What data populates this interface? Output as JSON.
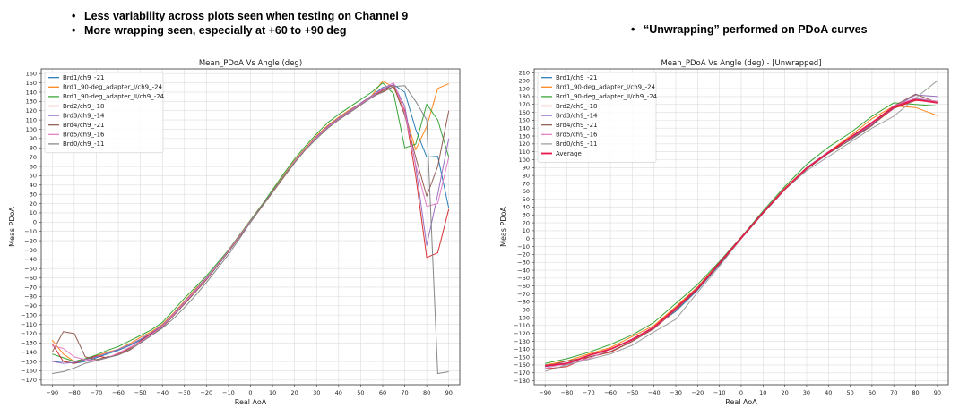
{
  "bullets_left": [
    "Less variability across plots seen when testing on Channel 9",
    "More wrapping seen, especially at +60 to +90 deg"
  ],
  "bullet_right": "“Unwrapping” performed on PDoA curves",
  "bullet_symbol": "•",
  "chart_data": [
    {
      "type": "line",
      "title": "Mean_PDoA Vs Angle (deg)",
      "xlabel": "Real AoA",
      "ylabel": "Meas PDoA",
      "xlim": [
        -95,
        95
      ],
      "ylim": [
        -175,
        165
      ],
      "xticks": [
        -90,
        -80,
        -70,
        -60,
        -50,
        -40,
        -30,
        -20,
        -10,
        0,
        10,
        20,
        30,
        40,
        50,
        60,
        70,
        80,
        90
      ],
      "yticks": [
        -170,
        -160,
        -150,
        -140,
        -130,
        -120,
        -110,
        -100,
        -90,
        -80,
        -70,
        -60,
        -50,
        -40,
        -30,
        -20,
        -10,
        0,
        10,
        20,
        30,
        40,
        50,
        60,
        70,
        80,
        90,
        100,
        110,
        120,
        130,
        140,
        150,
        160
      ],
      "grid": true,
      "legend": "top-left",
      "x": [
        -90,
        -85,
        -80,
        -75,
        -70,
        -65,
        -60,
        -55,
        -50,
        -45,
        -40,
        -35,
        -30,
        -25,
        -20,
        -15,
        -10,
        -5,
        0,
        5,
        10,
        15,
        20,
        25,
        30,
        35,
        40,
        45,
        50,
        55,
        60,
        65,
        70,
        75,
        80,
        85,
        90
      ],
      "series": [
        {
          "name": "Brd1/ch9_-21",
          "color": "#1f77b4",
          "values": [
            -150,
            -150,
            -152,
            -150,
            -146,
            -142,
            -138,
            -133,
            -127,
            -120,
            -112,
            -100,
            -88,
            -75,
            -62,
            -47,
            -32,
            -16,
            0,
            17,
            33,
            50,
            66,
            80,
            92,
            103,
            112,
            120,
            128,
            136,
            145,
            148,
            140,
            100,
            70,
            71,
            15
          ]
        },
        {
          "name": "Brd1_90-deg_adapter_I/ch9_-24",
          "color": "#ff7f0e",
          "values": [
            -127,
            -142,
            -150,
            -148,
            -144,
            -140,
            -137,
            -131,
            -124,
            -118,
            -110,
            -98,
            -85,
            -72,
            -60,
            -46,
            -30,
            -14,
            2,
            18,
            34,
            50,
            66,
            80,
            93,
            104,
            113,
            121,
            128,
            136,
            152,
            145,
            118,
            78,
            103,
            144,
            149
          ]
        },
        {
          "name": "Brd1_90-deg_adapter_II/ch9_-24",
          "color": "#2ca02c",
          "values": [
            -142,
            -146,
            -150,
            -147,
            -143,
            -138,
            -134,
            -128,
            -122,
            -116,
            -108,
            -95,
            -82,
            -70,
            -58,
            -44,
            -30,
            -14,
            2,
            18,
            35,
            52,
            68,
            82,
            95,
            107,
            116,
            124,
            132,
            140,
            150,
            138,
            80,
            84,
            127,
            110,
            70
          ]
        },
        {
          "name": "Brd2/ch9_-18",
          "color": "#d62728",
          "values": [
            -131,
            -150,
            -152,
            -148,
            -144,
            -146,
            -142,
            -136,
            -128,
            -120,
            -112,
            -100,
            -88,
            -75,
            -62,
            -46,
            -31,
            -15,
            1,
            17,
            33,
            49,
            65,
            79,
            91,
            102,
            111,
            119,
            127,
            135,
            142,
            148,
            120,
            50,
            -38,
            -33,
            14
          ]
        },
        {
          "name": "Brd3/ch9_-14",
          "color": "#9467bd",
          "values": [
            -150,
            -152,
            -151,
            -148,
            -145,
            -141,
            -137,
            -132,
            -126,
            -119,
            -111,
            -99,
            -86,
            -73,
            -60,
            -46,
            -31,
            -15,
            1,
            17,
            33,
            49,
            65,
            79,
            92,
            103,
            112,
            120,
            128,
            136,
            143,
            148,
            125,
            60,
            -25,
            30,
            90
          ]
        },
        {
          "name": "Brd4/ch9_-21",
          "color": "#8c564b",
          "values": [
            -140,
            -118,
            -120,
            -145,
            -148,
            -145,
            -143,
            -138,
            -130,
            -122,
            -113,
            -101,
            -88,
            -75,
            -62,
            -47,
            -32,
            -16,
            0,
            16,
            32,
            48,
            64,
            78,
            90,
            101,
            110,
            118,
            126,
            135,
            140,
            146,
            115,
            70,
            28,
            60,
            120
          ]
        },
        {
          "name": "Brd5/ch9_-16",
          "color": "#e377c2",
          "values": [
            -133,
            -136,
            -145,
            -148,
            -149,
            -146,
            -141,
            -135,
            -129,
            -121,
            -112,
            -100,
            -87,
            -74,
            -61,
            -46,
            -31,
            -15,
            1,
            17,
            33,
            49,
            65,
            79,
            91,
            102,
            111,
            119,
            127,
            135,
            144,
            150,
            118,
            62,
            17,
            20,
            70
          ]
        },
        {
          "name": "Brd0/ch9_-11",
          "color": "#7f7f7f",
          "values": [
            -163,
            -161,
            -157,
            -152,
            -149,
            -146,
            -143,
            -137,
            -130,
            -122,
            -114,
            -104,
            -92,
            -79,
            -65,
            -50,
            -35,
            -18,
            0,
            17,
            33,
            49,
            64,
            78,
            90,
            101,
            110,
            118,
            126,
            134,
            141,
            146,
            147,
            130,
            110,
            -163,
            -161
          ]
        }
      ]
    },
    {
      "type": "line",
      "title": "Mean_PDoA Vs Angle (deg)  - [Unwrapped]",
      "xlabel": "Real AoA",
      "ylabel": "Meas PDoA",
      "xlim": [
        -95,
        95
      ],
      "ylim": [
        -185,
        215
      ],
      "xticks": [
        -90,
        -80,
        -70,
        -60,
        -50,
        -40,
        -30,
        -20,
        -10,
        0,
        10,
        20,
        30,
        40,
        50,
        60,
        70,
        80,
        90
      ],
      "yticks": [
        -180,
        -170,
        -160,
        -150,
        -140,
        -130,
        -120,
        -110,
        -100,
        -90,
        -80,
        -70,
        -60,
        -50,
        -40,
        -30,
        -20,
        -10,
        0,
        10,
        20,
        30,
        40,
        50,
        60,
        70,
        80,
        90,
        100,
        110,
        120,
        130,
        140,
        150,
        160,
        170,
        180,
        190,
        200,
        210
      ],
      "grid": true,
      "legend": "top-left",
      "x": [
        -90,
        -80,
        -70,
        -60,
        -50,
        -40,
        -30,
        -20,
        -10,
        0,
        10,
        20,
        30,
        40,
        50,
        60,
        70,
        80,
        90
      ],
      "series": [
        {
          "name": "Brd1/ch9_-21",
          "color": "#1f77b4",
          "values": [
            -162,
            -158,
            -148,
            -140,
            -128,
            -112,
            -92,
            -65,
            -33,
            0,
            32,
            62,
            88,
            108,
            125,
            145,
            165,
            178,
            172
          ]
        },
        {
          "name": "Brd1_90-deg_adapter_I/ch9_-24",
          "color": "#ff7f0e",
          "values": [
            -160,
            -155,
            -146,
            -138,
            -124,
            -110,
            -86,
            -61,
            -30,
            2,
            33,
            64,
            90,
            110,
            130,
            152,
            168,
            166,
            156
          ]
        },
        {
          "name": "Brd1_90-deg_adapter_II/ch9_-24",
          "color": "#2ca02c",
          "values": [
            -158,
            -152,
            -144,
            -134,
            -122,
            -106,
            -82,
            -58,
            -29,
            2,
            35,
            66,
            94,
            116,
            134,
            155,
            172,
            170,
            168
          ]
        },
        {
          "name": "Brd2/ch9_-18",
          "color": "#d62728",
          "values": [
            -165,
            -162,
            -150,
            -144,
            -130,
            -114,
            -90,
            -64,
            -32,
            1,
            33,
            62,
            89,
            109,
            127,
            144,
            165,
            175,
            174
          ]
        },
        {
          "name": "Brd3/ch9_-14",
          "color": "#9467bd",
          "values": [
            -160,
            -160,
            -148,
            -140,
            -127,
            -112,
            -88,
            -62,
            -31,
            1,
            33,
            63,
            90,
            110,
            127,
            145,
            166,
            182,
            180
          ]
        },
        {
          "name": "Brd4/ch9_-21",
          "color": "#8c564b",
          "values": [
            -162,
            -155,
            -150,
            -143,
            -130,
            -114,
            -90,
            -64,
            -32,
            0,
            32,
            62,
            88,
            108,
            125,
            143,
            168,
            183,
            172
          ]
        },
        {
          "name": "Brd5/ch9_-16",
          "color": "#e377c2",
          "values": [
            -164,
            -158,
            -152,
            -140,
            -128,
            -113,
            -89,
            -63,
            -31,
            1,
            33,
            63,
            89,
            109,
            128,
            146,
            168,
            178,
            174
          ]
        },
        {
          "name": "Brd0/ch9_-11",
          "color": "#999999",
          "values": [
            -168,
            -160,
            -153,
            -146,
            -135,
            -118,
            -102,
            -68,
            -35,
            0,
            33,
            62,
            86,
            104,
            122,
            140,
            155,
            178,
            200
          ]
        },
        {
          "name": "Average",
          "color": "#e8174a",
          "values": [
            -161,
            -158,
            -148,
            -140,
            -128,
            -112,
            -88,
            -63,
            -31,
            1,
            33,
            63,
            89,
            109,
            128,
            147,
            167,
            176,
            172
          ]
        }
      ]
    }
  ]
}
